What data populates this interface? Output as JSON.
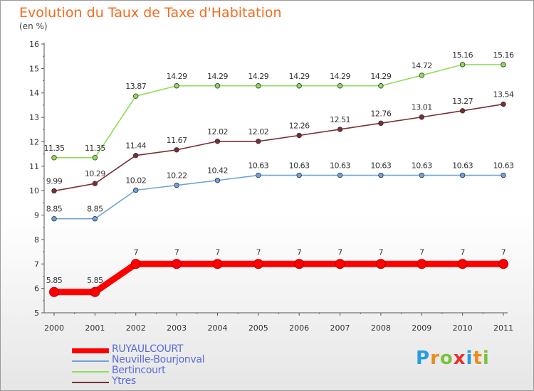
{
  "chart_data": {
    "type": "line",
    "title": "Evolution du Taux de Taxe d'Habitation",
    "subtitle": "(en %)",
    "x": [
      "2000",
      "2001",
      "2002",
      "2003",
      "2004",
      "2005",
      "2006",
      "2007",
      "2008",
      "2009",
      "2010",
      "2011"
    ],
    "ylim": [
      5,
      16
    ],
    "yticks": [
      "5",
      "6",
      "7",
      "8",
      "9",
      "10",
      "11",
      "12",
      "13",
      "14",
      "15",
      "16"
    ],
    "grid": false,
    "legend_position": "bottom-left",
    "series": [
      {
        "name": "RUYAULCOURT",
        "color": "#ff0000",
        "values": [
          5.85,
          5.85,
          7,
          7,
          7,
          7,
          7,
          7,
          7,
          7,
          7,
          7
        ],
        "labels": [
          "5.85",
          "5.85",
          "7",
          "7",
          "7",
          "7",
          "7",
          "7",
          "7",
          "7",
          "7",
          "7"
        ]
      },
      {
        "name": "Neuville-Bourjonval",
        "color": "#6fa3d8",
        "values": [
          8.85,
          8.85,
          10.02,
          10.22,
          10.42,
          10.63,
          10.63,
          10.63,
          10.63,
          10.63,
          10.63,
          10.63
        ],
        "labels": [
          "8.85",
          "8.85",
          "10.02",
          "10.22",
          "10.42",
          "10.63",
          "10.63",
          "10.63",
          "10.63",
          "10.63",
          "10.63",
          "10.63"
        ]
      },
      {
        "name": "Bertincourt",
        "color": "#8fdc5a",
        "values": [
          11.35,
          11.35,
          13.87,
          14.29,
          14.29,
          14.29,
          14.29,
          14.29,
          14.29,
          14.72,
          15.16,
          15.16
        ],
        "labels": [
          "11.35",
          "11.35",
          "13.87",
          "14.29",
          "14.29",
          "14.29",
          "14.29",
          "14.29",
          "14.29",
          "14.72",
          "15.16",
          "15.16"
        ]
      },
      {
        "name": "Ytres",
        "color": "#7a2e35",
        "values": [
          9.99,
          10.29,
          11.44,
          11.67,
          12.02,
          12.02,
          12.26,
          12.51,
          12.76,
          13.01,
          13.27,
          13.54
        ],
        "labels": [
          "9.99",
          "10.29",
          "11.44",
          "11.67",
          "12.02",
          "12.02",
          "12.26",
          "12.51",
          "12.76",
          "13.01",
          "13.27",
          "13.54"
        ]
      }
    ]
  },
  "logo": {
    "letters": [
      "P",
      "r",
      "o",
      "x",
      "i",
      "t",
      "i"
    ],
    "colors": [
      "#2a9be0",
      "#f08a1c",
      "#7cc242",
      "#e8312d",
      "#2a9be0",
      "#f08a1c",
      "#7cc242"
    ]
  }
}
